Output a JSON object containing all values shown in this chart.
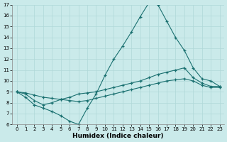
{
  "xlabel": "Humidex (Indice chaleur)",
  "background_color": "#caeaea",
  "grid_color": "#b0d8d8",
  "line_color": "#1a7070",
  "ylim": [
    6,
    17
  ],
  "xlim": [
    -0.5,
    23.5
  ],
  "yticks": [
    6,
    7,
    8,
    9,
    10,
    11,
    12,
    13,
    14,
    15,
    16,
    17
  ],
  "xticks": [
    0,
    1,
    2,
    3,
    4,
    5,
    6,
    7,
    8,
    9,
    10,
    11,
    12,
    13,
    14,
    15,
    16,
    17,
    18,
    19,
    20,
    21,
    22,
    23
  ],
  "line1_x": [
    0,
    1,
    2,
    3,
    4,
    5,
    6,
    7,
    8,
    9,
    10,
    11,
    12,
    13,
    14,
    15,
    16,
    17,
    18,
    19,
    20,
    21,
    22,
    23
  ],
  "line1_y": [
    9.0,
    8.5,
    7.8,
    7.5,
    7.2,
    6.8,
    6.3,
    6.0,
    7.5,
    8.8,
    10.5,
    12.0,
    13.2,
    14.5,
    15.9,
    17.2,
    17.0,
    15.5,
    14.0,
    12.8,
    11.2,
    10.2,
    10.0,
    9.5
  ],
  "line2_x": [
    0,
    1,
    2,
    3,
    4,
    5,
    6,
    7,
    8,
    9,
    10,
    11,
    12,
    13,
    14,
    15,
    16,
    17,
    18,
    19,
    20,
    21,
    22,
    23
  ],
  "line2_y": [
    9.0,
    8.8,
    8.2,
    7.8,
    8.0,
    8.3,
    8.5,
    8.8,
    8.9,
    9.0,
    9.2,
    9.4,
    9.6,
    9.8,
    10.0,
    10.3,
    10.6,
    10.8,
    11.0,
    11.2,
    10.3,
    9.8,
    9.5,
    9.5
  ],
  "line3_x": [
    0,
    1,
    2,
    3,
    4,
    5,
    6,
    7,
    8,
    9,
    10,
    11,
    12,
    13,
    14,
    15,
    16,
    17,
    18,
    19,
    20,
    21,
    22,
    23
  ],
  "line3_y": [
    9.0,
    8.9,
    8.7,
    8.5,
    8.4,
    8.3,
    8.2,
    8.1,
    8.2,
    8.4,
    8.6,
    8.8,
    9.0,
    9.2,
    9.4,
    9.6,
    9.8,
    10.0,
    10.1,
    10.2,
    10.0,
    9.6,
    9.4,
    9.4
  ]
}
